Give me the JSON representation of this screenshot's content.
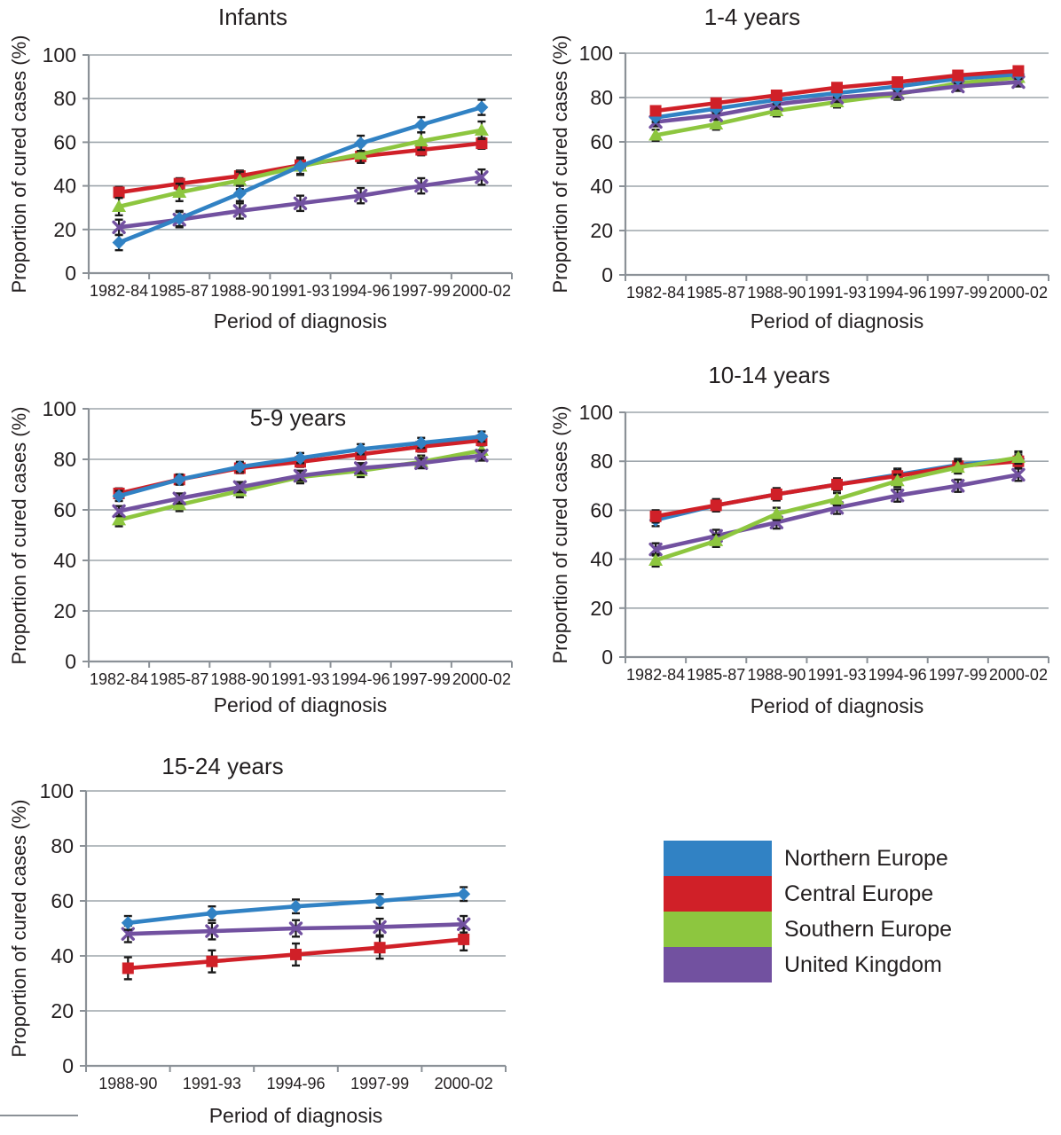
{
  "page": {
    "background": "#ffffff"
  },
  "legend": {
    "items": [
      {
        "label": "Northern Europe",
        "color": "#3182c4"
      },
      {
        "label": "Central Europe",
        "color": "#d02028"
      },
      {
        "label": "Southern Europe",
        "color": "#8dc63f"
      },
      {
        "label": "United Kingdom",
        "color": "#7251a0"
      }
    ]
  },
  "style_colors": {
    "gridline": "#9ea6ac",
    "axis": "#8b9197",
    "error_bar": "#1a1a1a",
    "text": "#231f20"
  },
  "chart_data": [
    {
      "id": "infants",
      "type": "line",
      "title": "Infants",
      "xlabel": "Period of diagnosis",
      "ylabel": "Proportion of cured cases (%)",
      "ylim": [
        0,
        100
      ],
      "yticks": [
        0,
        20,
        40,
        60,
        80,
        100
      ],
      "grid": true,
      "categories": [
        "1982-84",
        "1985-87",
        "1988-90",
        "1991-93",
        "1994-96",
        "1997-99",
        "2000-02"
      ],
      "draw_order": [
        1,
        2,
        3,
        0
      ],
      "series": [
        {
          "name": "Northern Europe",
          "color": "#3182c4",
          "marker": "diamond",
          "err": 3.5,
          "values": [
            14,
            25,
            36.5,
            49,
            59.5,
            68,
            76
          ]
        },
        {
          "name": "Central Europe",
          "color": "#d02028",
          "marker": "square",
          "err": 2.5,
          "values": [
            37,
            41,
            44.5,
            49.5,
            53.5,
            56.5,
            59.5
          ]
        },
        {
          "name": "Southern Europe",
          "color": "#8dc63f",
          "marker": "triangle",
          "err": 4,
          "values": [
            30.5,
            37,
            42.5,
            49,
            54.5,
            60.5,
            65.5
          ]
        },
        {
          "name": "United Kingdom",
          "color": "#7251a0",
          "marker": "x",
          "err": 3.5,
          "values": [
            21,
            24.5,
            28.5,
            32,
            35.5,
            40,
            44
          ]
        }
      ]
    },
    {
      "id": "age-1-4",
      "type": "line",
      "title": "1-4 years",
      "xlabel": "Period of diagnosis",
      "ylabel": "Proportion of cured cases (%)",
      "ylim": [
        0,
        100
      ],
      "yticks": [
        0,
        20,
        40,
        60,
        80,
        100
      ],
      "grid": true,
      "categories": [
        "1982-84",
        "1985-87",
        "1988-90",
        "1991-93",
        "1994-96",
        "1997-99",
        "2000-02"
      ],
      "draw_order": [
        2,
        3,
        0,
        1
      ],
      "series": [
        {
          "name": "Northern Europe",
          "color": "#3182c4",
          "marker": "diamond",
          "err": 2,
          "values": [
            71,
            75,
            79,
            82,
            85,
            88.5,
            90.5
          ]
        },
        {
          "name": "Central Europe",
          "color": "#d02028",
          "marker": "square",
          "err": 2,
          "values": [
            74,
            77.5,
            81,
            84.5,
            87,
            90,
            92
          ]
        },
        {
          "name": "Southern Europe",
          "color": "#8dc63f",
          "marker": "triangle",
          "err": 2.5,
          "values": [
            63,
            68,
            74,
            78,
            81.5,
            86.5,
            89
          ]
        },
        {
          "name": "United Kingdom",
          "color": "#7251a0",
          "marker": "x",
          "err": 2,
          "values": [
            69,
            72,
            77,
            80,
            82,
            85,
            87
          ]
        }
      ]
    },
    {
      "id": "age-5-9",
      "type": "line",
      "title": "5-9 years",
      "xlabel": "Period of diagnosis",
      "ylabel": "Proportion of cured cases (%)",
      "ylim": [
        0,
        100
      ],
      "yticks": [
        0,
        20,
        40,
        60,
        80,
        100
      ],
      "grid": true,
      "categories": [
        "1982-84",
        "1985-87",
        "1988-90",
        "1991-93",
        "1994-96",
        "1997-99",
        "2000-02"
      ],
      "draw_order": [
        2,
        3,
        1,
        0
      ],
      "series": [
        {
          "name": "Northern Europe",
          "color": "#3182c4",
          "marker": "diamond",
          "err": 2,
          "values": [
            65.5,
            72,
            77,
            80.5,
            84,
            86.5,
            89
          ]
        },
        {
          "name": "Central Europe",
          "color": "#d02028",
          "marker": "square",
          "err": 2,
          "values": [
            66.5,
            72,
            76.5,
            79,
            82,
            85,
            87.5
          ]
        },
        {
          "name": "Southern Europe",
          "color": "#8dc63f",
          "marker": "triangle",
          "err": 2.5,
          "values": [
            56,
            62,
            67.5,
            73,
            75.5,
            79,
            83.5
          ]
        },
        {
          "name": "United Kingdom",
          "color": "#7251a0",
          "marker": "x",
          "err": 2,
          "values": [
            59.5,
            64.5,
            69,
            73.5,
            76.5,
            78.5,
            81.5
          ]
        }
      ]
    },
    {
      "id": "age-10-14",
      "type": "line",
      "title": "10-14 years",
      "xlabel": "Period of diagnosis",
      "ylabel": "Proportion of cured cases (%)",
      "ylim": [
        0,
        100
      ],
      "yticks": [
        0,
        20,
        40,
        60,
        80,
        100
      ],
      "grid": true,
      "categories": [
        "1982-84",
        "1985-87",
        "1988-90",
        "1991-93",
        "1994-96",
        "1997-99",
        "2000-02"
      ],
      "draw_order": [
        0,
        3,
        1,
        2
      ],
      "series": [
        {
          "name": "Northern Europe",
          "color": "#3182c4",
          "marker": "diamond",
          "err": 2.5,
          "values": [
            56,
            62,
            66.5,
            70.5,
            74.5,
            78.5,
            81
          ]
        },
        {
          "name": "Central Europe",
          "color": "#d02028",
          "marker": "square",
          "err": 2.5,
          "values": [
            57.5,
            62,
            66.5,
            70.5,
            74,
            78,
            80
          ]
        },
        {
          "name": "Southern Europe",
          "color": "#8dc63f",
          "marker": "triangle",
          "err": 2.5,
          "values": [
            39.5,
            47.5,
            58.5,
            64.5,
            72,
            77.5,
            81.5
          ]
        },
        {
          "name": "United Kingdom",
          "color": "#7251a0",
          "marker": "x",
          "err": 2.5,
          "values": [
            44,
            49.5,
            55,
            61,
            66,
            70,
            74.5
          ]
        }
      ]
    },
    {
      "id": "age-15-24",
      "type": "line",
      "title": "15-24 years",
      "xlabel": "Period of diagnosis",
      "ylabel": "Proportion of cured cases (%)",
      "ylim": [
        0,
        100
      ],
      "yticks": [
        0,
        20,
        40,
        60,
        80,
        100
      ],
      "grid": true,
      "categories": [
        "1988-90",
        "1991-93",
        "1994-96",
        "1997-99",
        "2000-02"
      ],
      "draw_order": [
        1,
        2,
        0
      ],
      "series": [
        {
          "name": "Northern Europe",
          "color": "#3182c4",
          "marker": "diamond",
          "err": 2.5,
          "values": [
            52,
            55.5,
            58,
            60,
            62.5
          ]
        },
        {
          "name": "Central Europe",
          "color": "#d02028",
          "marker": "square",
          "err": 4,
          "values": [
            35.5,
            38,
            40.5,
            43,
            46
          ]
        },
        {
          "name": "United Kingdom",
          "color": "#7251a0",
          "marker": "x",
          "err": 3,
          "values": [
            48,
            49,
            50,
            50.5,
            51.5
          ]
        }
      ]
    }
  ]
}
